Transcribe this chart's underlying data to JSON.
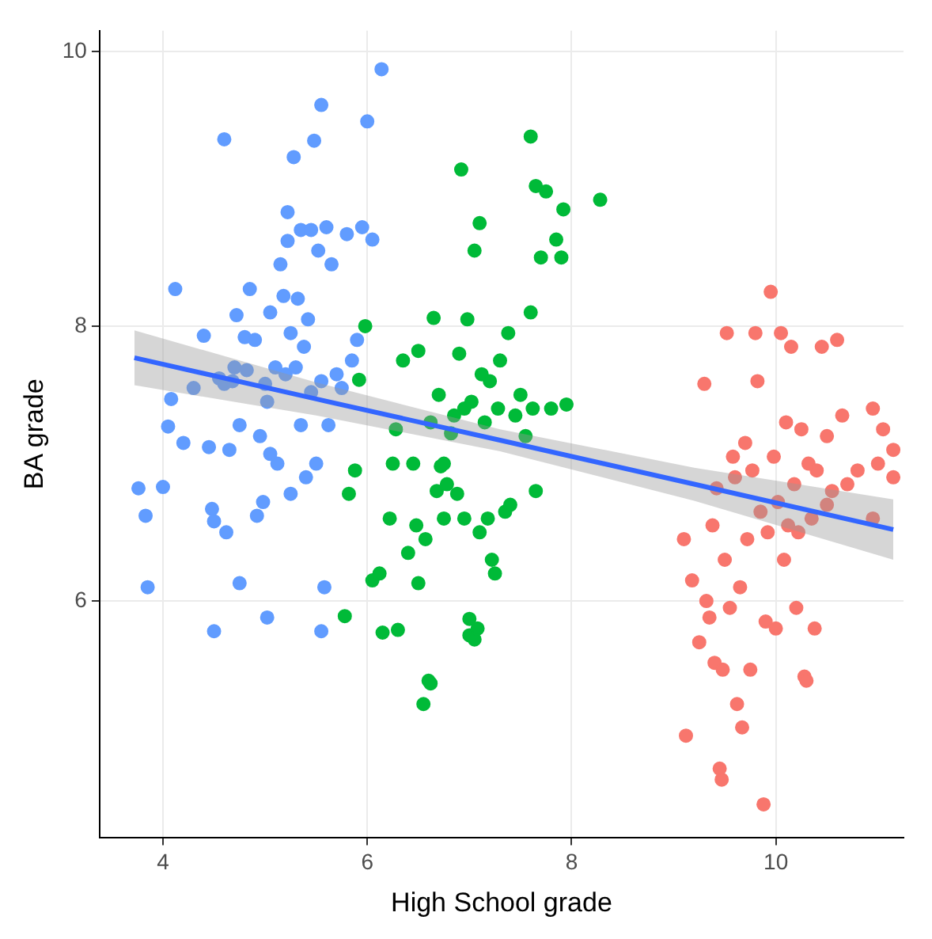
{
  "chart_data": {
    "type": "scatter",
    "xlabel": "High School grade",
    "ylabel": "BA grade",
    "xlim": [
      3.38,
      11.25
    ],
    "ylim": [
      4.28,
      10.15
    ],
    "xticks": [
      4,
      6,
      8,
      10
    ],
    "yticks": [
      6,
      8,
      10
    ],
    "grid": true,
    "legend": false,
    "marker": "circle",
    "series": [
      {
        "color": "#619cff",
        "x": [
          3.76,
          3.83,
          3.85,
          4.0,
          4.05,
          4.08,
          4.12,
          4.2,
          4.3,
          4.4,
          4.45,
          4.48,
          4.5,
          4.5,
          4.55,
          4.6,
          4.6,
          4.62,
          4.65,
          4.68,
          4.7,
          4.72,
          4.75,
          4.75,
          4.8,
          4.82,
          4.85,
          4.9,
          4.92,
          4.95,
          4.98,
          5.0,
          5.02,
          5.05,
          5.05,
          5.1,
          5.12,
          5.15,
          5.18,
          5.2,
          5.22,
          5.22,
          5.25,
          5.25,
          5.28,
          5.3,
          5.32,
          5.35,
          5.35,
          5.38,
          5.4,
          5.42,
          5.45,
          5.45,
          5.48,
          5.5,
          5.52,
          5.55,
          5.55,
          5.58,
          5.6,
          5.62,
          5.65,
          5.7,
          5.75,
          5.8,
          5.85,
          5.9,
          5.95,
          6.0,
          6.05,
          6.14,
          5.02,
          5.55
        ],
        "values": [
          6.82,
          6.62,
          6.1,
          6.83,
          7.27,
          7.47,
          8.27,
          7.15,
          7.55,
          7.93,
          7.12,
          6.67,
          6.58,
          5.78,
          7.62,
          7.58,
          9.36,
          6.5,
          7.1,
          7.6,
          7.7,
          8.08,
          6.13,
          7.28,
          7.92,
          7.68,
          8.27,
          7.9,
          6.62,
          7.2,
          6.72,
          7.58,
          7.45,
          7.07,
          8.1,
          7.7,
          7.0,
          8.45,
          8.22,
          7.65,
          8.62,
          8.83,
          6.78,
          7.95,
          9.23,
          7.7,
          8.2,
          7.28,
          8.7,
          7.85,
          6.9,
          8.05,
          7.52,
          8.7,
          9.35,
          7.0,
          8.55,
          9.61,
          7.6,
          6.1,
          8.72,
          7.28,
          8.45,
          7.65,
          7.55,
          8.67,
          7.75,
          7.9,
          8.72,
          9.49,
          8.63,
          9.87,
          5.88,
          5.78
        ]
      },
      {
        "color": "#00ba38",
        "x": [
          5.78,
          5.82,
          5.88,
          5.92,
          5.98,
          6.05,
          6.12,
          6.15,
          6.22,
          6.25,
          6.28,
          6.3,
          6.35,
          6.4,
          6.45,
          6.48,
          6.5,
          6.5,
          6.55,
          6.57,
          6.6,
          6.62,
          6.62,
          6.65,
          6.68,
          6.7,
          6.72,
          6.75,
          6.75,
          6.78,
          6.82,
          6.85,
          6.88,
          6.9,
          6.92,
          6.95,
          6.95,
          6.98,
          7.0,
          7.0,
          7.02,
          7.05,
          7.05,
          7.08,
          7.1,
          7.1,
          7.12,
          7.15,
          7.18,
          7.2,
          7.22,
          7.25,
          7.28,
          7.3,
          7.35,
          7.38,
          7.4,
          7.45,
          7.5,
          7.55,
          7.6,
          7.62,
          7.65,
          7.65,
          7.7,
          7.75,
          7.8,
          7.85,
          7.9,
          7.92,
          7.95,
          8.28,
          7.6
        ],
        "values": [
          5.89,
          6.78,
          6.95,
          7.61,
          8.0,
          6.15,
          6.2,
          5.77,
          6.6,
          7.0,
          7.25,
          5.79,
          7.75,
          6.35,
          7.0,
          6.55,
          6.13,
          7.82,
          5.25,
          6.45,
          5.42,
          5.4,
          7.3,
          8.06,
          6.8,
          7.5,
          6.98,
          6.6,
          7.0,
          6.85,
          7.22,
          7.35,
          6.78,
          7.8,
          9.14,
          6.6,
          7.4,
          8.05,
          5.87,
          5.75,
          7.45,
          8.55,
          5.72,
          5.8,
          6.5,
          8.75,
          7.65,
          7.3,
          6.6,
          7.6,
          6.3,
          6.2,
          7.4,
          7.75,
          6.65,
          7.95,
          6.7,
          7.35,
          7.5,
          7.2,
          8.1,
          7.4,
          9.02,
          6.8,
          8.5,
          8.98,
          7.4,
          8.63,
          8.5,
          8.85,
          7.43,
          8.92,
          9.38
        ]
      },
      {
        "color": "#f8766d",
        "x": [
          9.1,
          9.12,
          9.18,
          9.25,
          9.3,
          9.32,
          9.35,
          9.38,
          9.4,
          9.42,
          9.45,
          9.47,
          9.48,
          9.5,
          9.52,
          9.55,
          9.58,
          9.6,
          9.62,
          9.65,
          9.67,
          9.7,
          9.72,
          9.75,
          9.77,
          9.8,
          9.82,
          9.85,
          9.88,
          9.9,
          9.92,
          9.95,
          9.98,
          10.0,
          10.02,
          10.05,
          10.08,
          10.1,
          10.12,
          10.15,
          10.18,
          10.2,
          10.22,
          10.25,
          10.28,
          10.3,
          10.32,
          10.35,
          10.38,
          10.4,
          10.45,
          10.5,
          10.55,
          10.6,
          10.65,
          10.7,
          10.5,
          10.95,
          10.95,
          11.0,
          11.05,
          11.15,
          11.15,
          10.8
        ],
        "values": [
          6.45,
          5.02,
          6.15,
          5.7,
          7.58,
          6.0,
          5.88,
          6.55,
          5.55,
          6.82,
          4.78,
          4.7,
          5.5,
          6.3,
          7.95,
          5.95,
          7.05,
          6.9,
          5.25,
          6.1,
          5.08,
          7.15,
          6.45,
          5.5,
          6.95,
          7.95,
          7.6,
          6.65,
          4.52,
          5.85,
          6.5,
          8.25,
          7.05,
          5.8,
          6.72,
          7.95,
          6.3,
          7.3,
          6.55,
          7.85,
          6.85,
          5.95,
          6.5,
          7.25,
          5.45,
          5.42,
          7.0,
          6.6,
          5.8,
          6.95,
          7.85,
          7.2,
          6.8,
          7.9,
          7.35,
          6.85,
          6.7,
          7.4,
          6.6,
          7.0,
          7.25,
          7.1,
          6.9,
          6.95
        ]
      },
      {
        "type": "line",
        "marker": "none",
        "color": "#3366ff",
        "x": [
          3.72,
          5.5,
          7.3,
          9.2,
          11.15
        ],
        "values": [
          7.77,
          7.47,
          7.17,
          6.85,
          6.52
        ],
        "lower": [
          7.57,
          7.35,
          7.09,
          6.73,
          6.3
        ],
        "upper": [
          7.97,
          7.59,
          7.25,
          6.97,
          6.74
        ]
      }
    ]
  }
}
